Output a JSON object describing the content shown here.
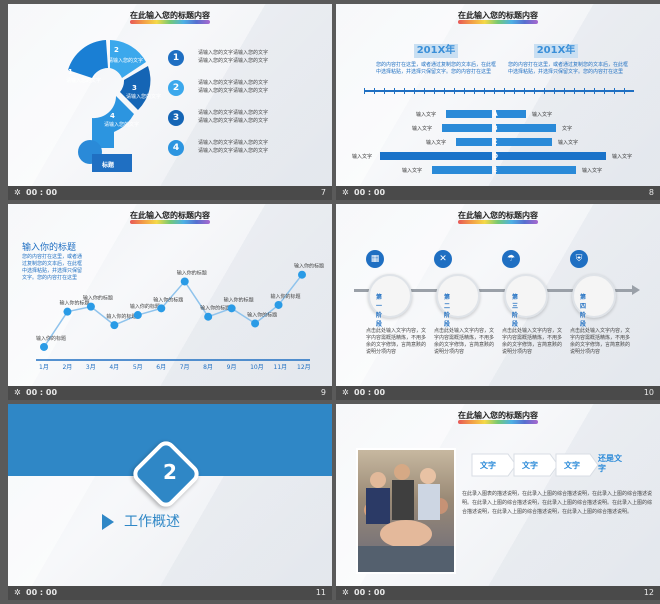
{
  "slide_title": "在此输入您的标题内容",
  "time": "00 : 00",
  "slides": [
    {
      "num": "7"
    },
    {
      "num": "8"
    },
    {
      "num": "9"
    },
    {
      "num": "10"
    },
    {
      "num": "11"
    },
    {
      "num": "12"
    }
  ],
  "s7": {
    "q_items": [
      {
        "n": "1",
        "t": "请输入您的文字"
      },
      {
        "n": "2",
        "t": "请输入您的文字"
      },
      {
        "n": "3",
        "t": "请输入您的文字"
      },
      {
        "n": "4",
        "t": "请输入您的文字"
      }
    ],
    "badge": "标题",
    "rows": [
      {
        "n": "1",
        "l1": "请输入您的文字请输入您的文字",
        "l2": "请输入您的文字请输入您的文字"
      },
      {
        "n": "2",
        "l1": "请输入您的文字请输入您的文字",
        "l2": "请输入您的文字请输入您的文字"
      },
      {
        "n": "3",
        "l1": "请输入您的文字请输入您的文字",
        "l2": "请输入您的文字请输入您的文字"
      },
      {
        "n": "4",
        "l1": "请输入您的文字请输入您的文字",
        "l2": "请输入您的文字请输入您的文字"
      }
    ]
  },
  "s8": {
    "year_left": "201X年",
    "year_right": "201X年",
    "desc_left": "您的内容打在这里，或者通过复制您的文本后，在此框中选择粘贴，并选择只保留文字。您的内容打在这里",
    "desc_right": "您的内容打在这里，或者通过复制您的文本后，在此框中选择粘贴，并选择只保留文字。您的内容打在这里",
    "letters": [
      "A",
      "B",
      "C",
      "D",
      "E"
    ],
    "left_labels": [
      "输入文字",
      "输入文字",
      "输入文字",
      "输入文字",
      "输入文字"
    ],
    "right_labels": [
      "输入文字",
      "文字",
      "输入文字",
      "输入文字",
      "输入文字"
    ]
  },
  "s9": {
    "heading": "输入你的标题",
    "desc": "您的内容打在这里，或者通过复制您的文本后，在此框中选择粘贴，并选择只保留文字。您的内容打在这里",
    "point_label": "输入你的标题",
    "chart_data": {
      "type": "line",
      "categories": [
        "1月",
        "2月",
        "3月",
        "4月",
        "5月",
        "6月",
        "7月",
        "8月",
        "9月",
        "10月",
        "11月",
        "12月"
      ],
      "values": [
        0.3,
        2.4,
        2.7,
        1.6,
        2.2,
        2.6,
        4.2,
        2.1,
        2.6,
        1.7,
        2.8,
        4.6
      ]
    }
  },
  "s10": {
    "steps": [
      {
        "label": "第一阶段",
        "icon": "calendar-icon"
      },
      {
        "label": "第二阶段",
        "icon": "tools-icon"
      },
      {
        "label": "第三阶段",
        "icon": "umbrella-icon"
      },
      {
        "label": "第四阶段",
        "icon": "shield-icon"
      }
    ],
    "desc": "点击此处输入文字内容，文字内容需概括精炼，不用多余的文字修饰，言简意赅的说明分项内容"
  },
  "s11": {
    "number": "2",
    "title": "工作概述"
  },
  "s12": {
    "pills": [
      "文字",
      "文字",
      "文字",
      "还是文字"
    ],
    "para": "在此录入图表的描述说明，在此录入上图的综合描述说明，在此录入上图的综合描述说明。在此录入上图的综合描述说明，在此录入上图的综合描述说明。在此录入上图的综合描述说明，在此录入上图的综合描述说明，在此录入上图的综合描述说明。"
  }
}
